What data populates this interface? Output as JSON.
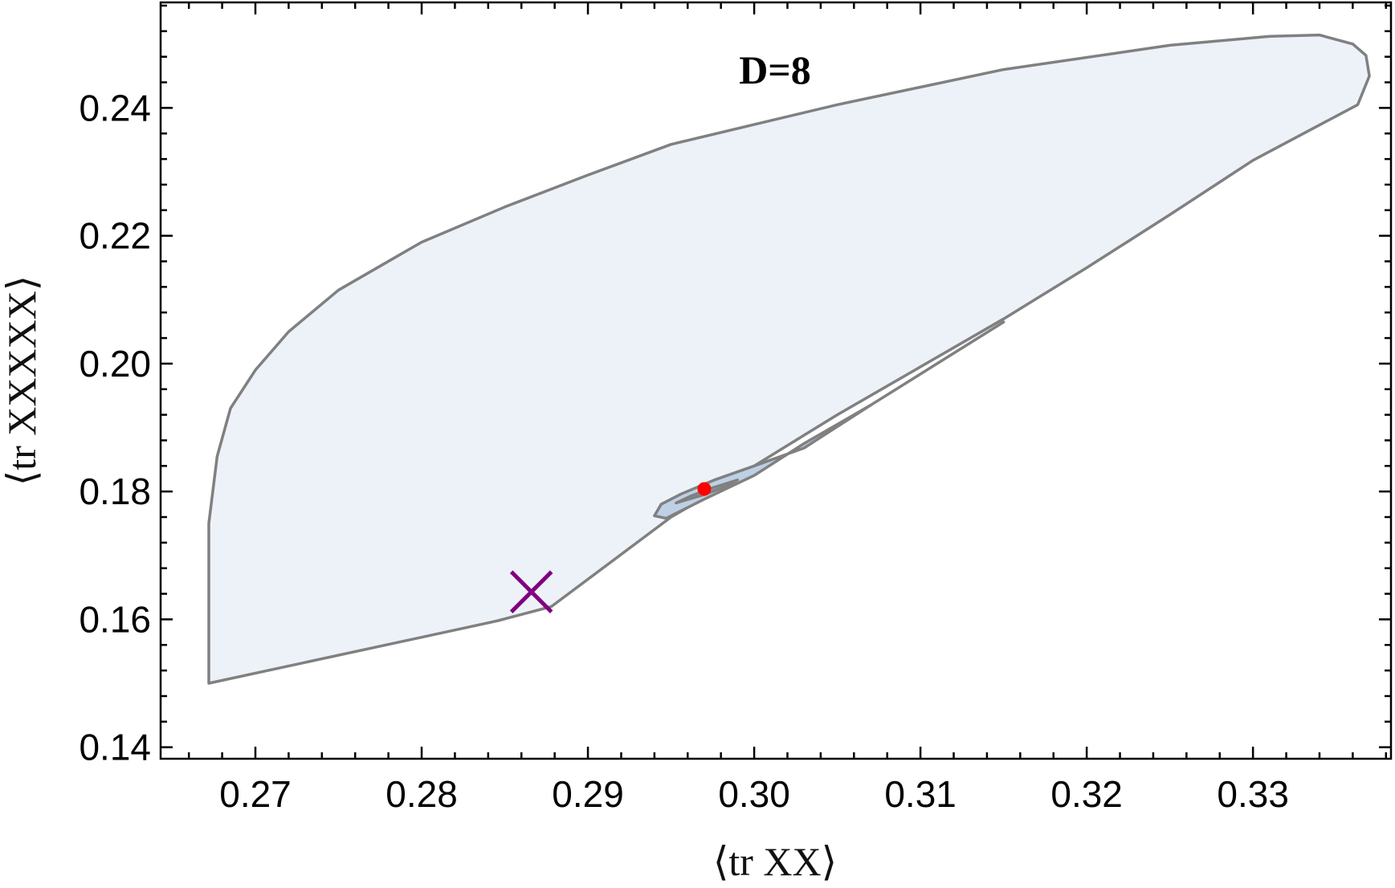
{
  "chart_data": {
    "type": "area",
    "title": "D=8",
    "xlabel": "⟨tr XX⟩",
    "ylabel": "⟨tr XXXXX⟩",
    "xlim": [
      0.2643,
      0.3383
    ],
    "ylim": [
      0.1382,
      0.2565
    ],
    "x_ticks": [
      0.27,
      0.28,
      0.29,
      0.3,
      0.31,
      0.32,
      0.33
    ],
    "x_tick_labels": [
      "0.27",
      "0.28",
      "0.29",
      "0.30",
      "0.31",
      "0.32",
      "0.33"
    ],
    "y_ticks": [
      0.14,
      0.16,
      0.18,
      0.2,
      0.22,
      0.24
    ],
    "y_tick_labels": [
      "0.14",
      "0.16",
      "0.18",
      "0.20",
      "0.22",
      "0.24"
    ],
    "grid": false,
    "regions": [
      {
        "fill": "#edf2f9",
        "stroke": "#808080",
        "points": [
          [
            0.2672,
            0.15
          ],
          [
            0.2839,
            0.1594
          ],
          [
            0.2846,
            0.1598
          ],
          [
            0.2878,
            0.162
          ],
          [
            0.295,
            0.176
          ],
          [
            0.297,
            0.179
          ],
          [
            0.3,
            0.184
          ],
          [
            0.305,
            0.192
          ],
          [
            0.31,
            0.1995
          ],
          [
            0.315,
            0.207
          ],
          [
            0.32,
            0.215
          ],
          [
            0.325,
            0.2233
          ],
          [
            0.33,
            0.2318
          ],
          [
            0.3363,
            0.2405
          ],
          [
            0.337,
            0.245
          ],
          [
            0.3368,
            0.2482
          ],
          [
            0.336,
            0.25
          ],
          [
            0.334,
            0.2514
          ],
          [
            0.331,
            0.2512
          ],
          [
            0.325,
            0.2498
          ],
          [
            0.315,
            0.246
          ],
          [
            0.305,
            0.2405
          ],
          [
            0.3,
            0.2374
          ],
          [
            0.295,
            0.2343
          ],
          [
            0.29,
            0.2295
          ],
          [
            0.285,
            0.2245
          ],
          [
            0.28,
            0.219
          ],
          [
            0.275,
            0.2115
          ],
          [
            0.272,
            0.205
          ],
          [
            0.27,
            0.199
          ],
          [
            0.2685,
            0.193
          ],
          [
            0.2677,
            0.1855
          ],
          [
            0.2672,
            0.175
          ],
          [
            0.2672,
            0.15
          ]
        ]
      },
      {
        "fill": "#bdd0e6",
        "stroke": "#808080",
        "points": [
          [
            0.2947,
            0.1758
          ],
          [
            0.294,
            0.1762
          ],
          [
            0.2944,
            0.178
          ],
          [
            0.2956,
            0.1796
          ],
          [
            0.2976,
            0.1818
          ],
          [
            0.3,
            0.184
          ],
          [
            0.303,
            0.1868
          ],
          [
            0.307,
            0.1935
          ],
          [
            0.311,
            0.2
          ],
          [
            0.315,
            0.2065
          ],
          [
            0.311,
            0.2
          ],
          [
            0.307,
            0.1935
          ],
          [
            0.303,
            0.1875
          ],
          [
            0.3,
            0.1825
          ],
          [
            0.297,
            0.1788
          ],
          [
            0.2947,
            0.1758
          ]
        ]
      },
      {
        "fill": "#8f9fb4",
        "stroke": "#808080",
        "points": [
          [
            0.2953,
            0.1782
          ],
          [
            0.2962,
            0.1793
          ],
          [
            0.2974,
            0.1805
          ],
          [
            0.299,
            0.1818
          ],
          [
            0.2983,
            0.1808
          ],
          [
            0.297,
            0.1795
          ],
          [
            0.2958,
            0.1786
          ],
          [
            0.2953,
            0.1782
          ]
        ]
      }
    ],
    "markers": [
      {
        "shape": "x",
        "x": 0.2866,
        "y": 0.1643,
        "color": "#800080"
      },
      {
        "shape": "dot",
        "x": 0.297,
        "y": 0.1804,
        "color": "#ff0000"
      }
    ]
  }
}
